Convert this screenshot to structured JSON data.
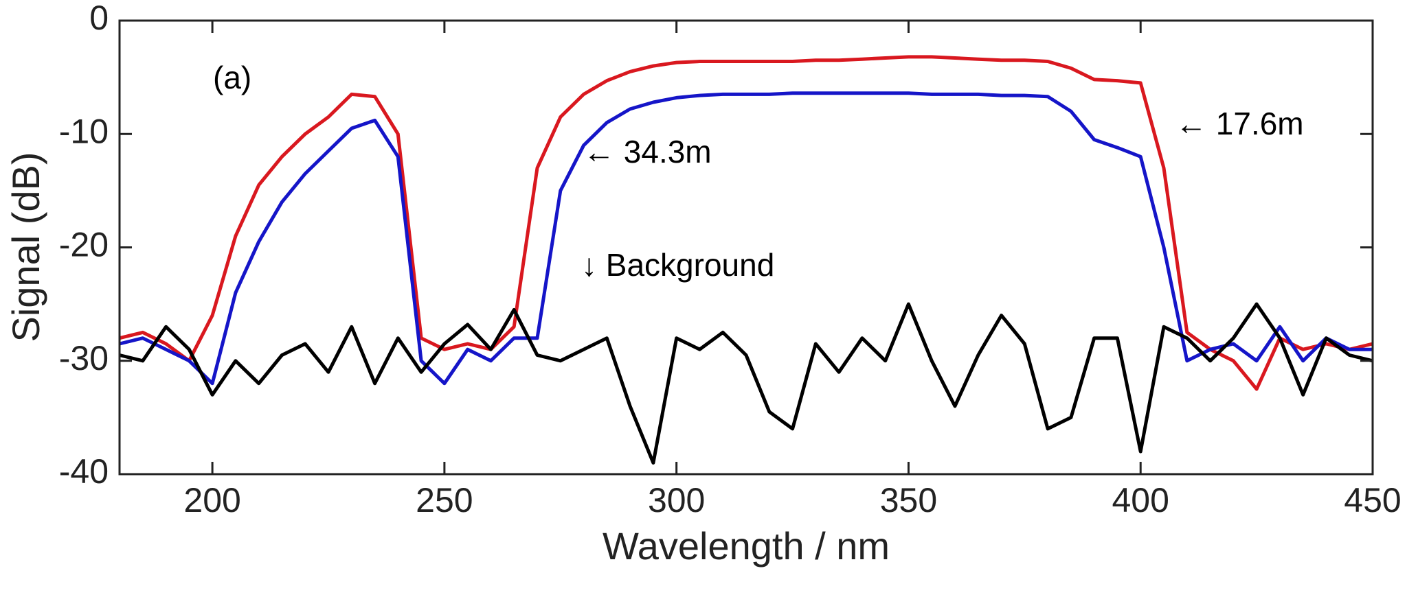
{
  "chart_data": {
    "type": "line",
    "xlabel": "Wavelength / nm",
    "ylabel": "Signal (dB)",
    "annotations": [
      "(a)",
      "← 34.3m",
      "← 17.6m",
      "↓ Background"
    ],
    "x": [
      180,
      185,
      190,
      195,
      200,
      205,
      210,
      215,
      220,
      225,
      230,
      235,
      240,
      245,
      250,
      255,
      260,
      265,
      270,
      275,
      280,
      285,
      290,
      295,
      300,
      305,
      310,
      315,
      320,
      325,
      330,
      335,
      340,
      345,
      350,
      355,
      360,
      365,
      370,
      375,
      380,
      385,
      390,
      395,
      400,
      405,
      410,
      415,
      420,
      425,
      430,
      435,
      440,
      445,
      450
    ],
    "series": [
      {
        "color": "#d9181f",
        "values": [
          -28,
          -27.5,
          -28.5,
          -30,
          -26,
          -19,
          -14.5,
          -12,
          -10,
          -8.5,
          -6.5,
          -6.7,
          -10,
          -28,
          -29,
          -28.5,
          -29,
          -27,
          -13,
          -8.5,
          -6.5,
          -5.3,
          -4.5,
          -4,
          -3.7,
          -3.6,
          -3.6,
          -3.6,
          -3.6,
          -3.6,
          -3.5,
          -3.5,
          -3.4,
          -3.3,
          -3.2,
          -3.2,
          -3.3,
          -3.4,
          -3.5,
          -3.5,
          -3.6,
          -4.2,
          -5.2,
          -5.3,
          -5.5,
          -13,
          -27.5,
          -29,
          -30,
          -32.5,
          -28,
          -29,
          -28.5,
          -29,
          -28.5
        ]
      },
      {
        "color": "#1515c8",
        "values": [
          -28.5,
          -28,
          -29,
          -30,
          -32,
          -24,
          -19.5,
          -16,
          -13.5,
          -11.5,
          -9.5,
          -8.8,
          -12,
          -30,
          -32,
          -29,
          -30,
          -28,
          -28,
          -15,
          -11,
          -9,
          -7.8,
          -7.2,
          -6.8,
          -6.6,
          -6.5,
          -6.5,
          -6.5,
          -6.4,
          -6.4,
          -6.4,
          -6.4,
          -6.4,
          -6.4,
          -6.5,
          -6.5,
          -6.5,
          -6.6,
          -6.6,
          -6.7,
          -8,
          -10.5,
          -11.2,
          -12,
          -20,
          -30,
          -29,
          -28.5,
          -30,
          -27,
          -30,
          -28,
          -29,
          -29
        ]
      },
      {
        "color": "#000000",
        "values": [
          -29.5,
          -30,
          -27,
          -29,
          -33,
          -30,
          -32,
          -29.5,
          -28.5,
          -31,
          -27,
          -32,
          -28,
          -31,
          -28.5,
          -26.8,
          -29,
          -25.5,
          -29.5,
          -30,
          -29,
          -28,
          -34,
          -39,
          -28,
          -29,
          -27.5,
          -29.5,
          -34.5,
          -36,
          -28.5,
          -31,
          -28,
          -30,
          -25,
          -30,
          -34,
          -29.5,
          -26,
          -28.5,
          -36,
          -35,
          -28,
          -28,
          -38,
          -27,
          -28,
          -30,
          -28,
          -25,
          -28,
          -33,
          -28,
          -29.5,
          -30
        ]
      }
    ],
    "xlim": [
      180,
      450
    ],
    "xticks": [
      200,
      250,
      300,
      350,
      400,
      450
    ],
    "ylim": [
      -40,
      0
    ],
    "yticks": [
      -40,
      -30,
      -20,
      -10,
      0
    ]
  }
}
